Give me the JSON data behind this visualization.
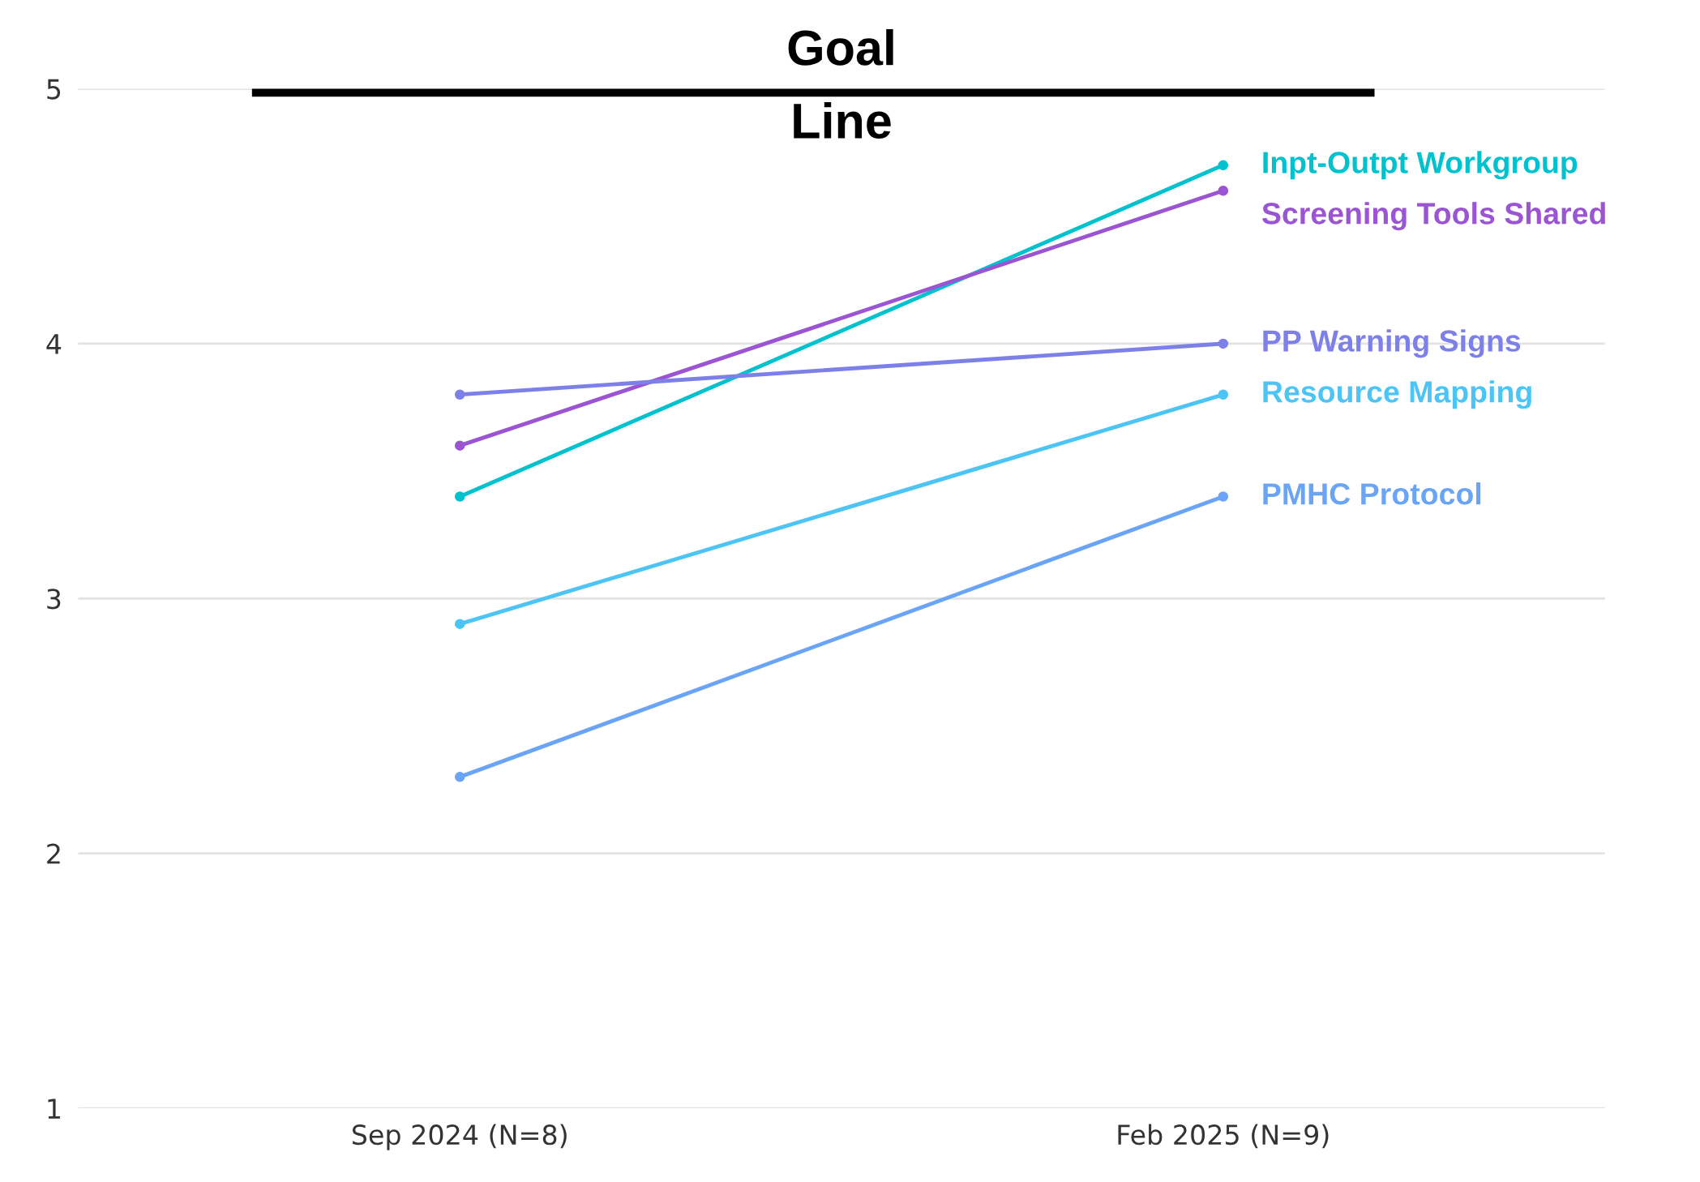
{
  "chart_data": {
    "type": "line",
    "categories": [
      "Sep 2024 (N=8)",
      "Feb 2025 (N=9)"
    ],
    "series": [
      {
        "name": "Inpt-Outpt Workgroup",
        "color": "#00c2cf",
        "values": [
          3.4,
          4.7
        ]
      },
      {
        "name": "Screening Tools Shared",
        "color": "#9b55d2",
        "values": [
          3.6,
          4.6
        ]
      },
      {
        "name": "PP Warning Signs",
        "color": "#7d80e8",
        "values": [
          3.8,
          4.0
        ]
      },
      {
        "name": "Resource Mapping",
        "color": "#4cc4f5",
        "values": [
          2.9,
          3.8
        ]
      },
      {
        "name": "PMHC Protocol",
        "color": "#6aa4f7",
        "values": [
          2.3,
          3.4
        ]
      }
    ],
    "ylim": [
      1,
      5
    ],
    "yticks": [
      1,
      2,
      3,
      4,
      5
    ],
    "grid": "y",
    "marker": "circle",
    "line_style": "solid",
    "ref_lines": [
      {
        "axis": "y",
        "value": 5,
        "label": "Goal Line",
        "color": "#000000"
      }
    ]
  }
}
